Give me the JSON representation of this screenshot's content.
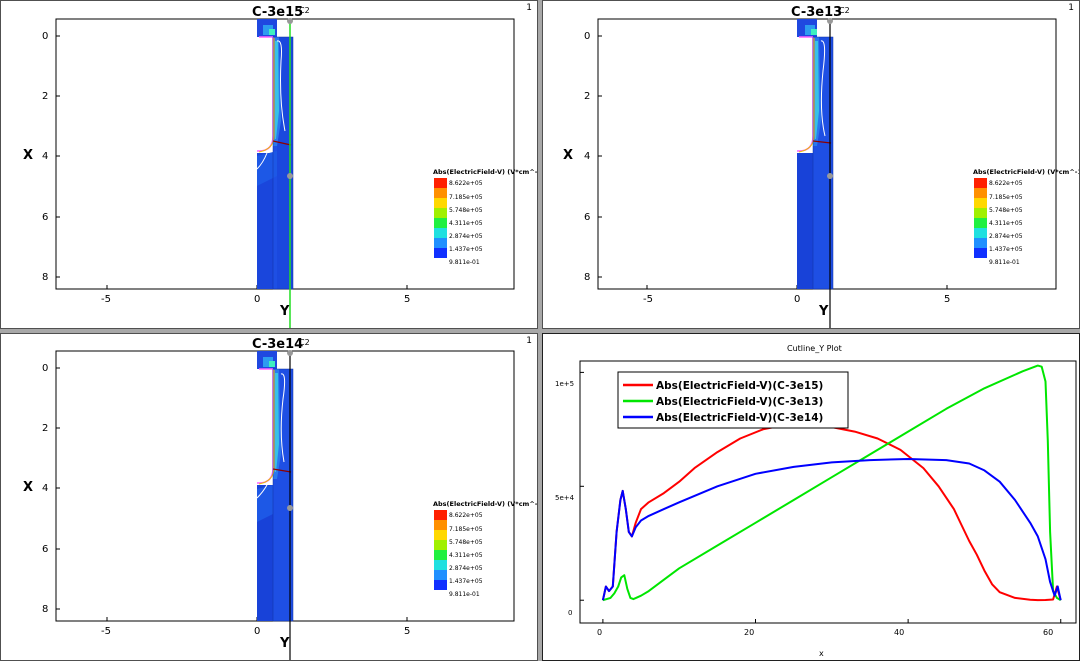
{
  "viewports": [
    {
      "id": "vp1",
      "number": "1",
      "title": "C-3e15",
      "cut_label": "C2",
      "cut_color": "#22dd22",
      "x_axis_label": "X",
      "y_axis_label": "Y",
      "x_ticks": [
        "0",
        "2",
        "4",
        "6",
        "8"
      ],
      "y_ticks": [
        "-5",
        "0",
        "5"
      ],
      "colorbar": {
        "title": "Abs(ElectricField-V) (V*cm^-1)",
        "labels": [
          "8.622e+05",
          "7.185e+05",
          "5.748e+05",
          "4.311e+05",
          "2.874e+05",
          "1.437e+05",
          "9.811e-01"
        ]
      }
    },
    {
      "id": "vp2",
      "number": "1",
      "title": "C-3e13",
      "cut_label": "C2",
      "cut_color": "#000000",
      "x_axis_label": "X",
      "y_axis_label": "Y",
      "x_ticks": [
        "0",
        "2",
        "4",
        "6",
        "8"
      ],
      "y_ticks": [
        "-5",
        "0",
        "5"
      ],
      "colorbar": {
        "title": "Abs(ElectricField-V) (V*cm^-1)",
        "labels": [
          "8.622e+05",
          "7.185e+05",
          "5.748e+05",
          "4.311e+05",
          "2.874e+05",
          "1.437e+05",
          "9.811e-01"
        ]
      }
    },
    {
      "id": "vp3",
      "number": "1",
      "title": "C-3e14",
      "cut_label": "C2",
      "cut_color": "#000000",
      "x_axis_label": "X",
      "y_axis_label": "Y",
      "x_ticks": [
        "0",
        "2",
        "4",
        "6",
        "8"
      ],
      "y_ticks": [
        "-5",
        "0",
        "5"
      ],
      "colorbar": {
        "title": "Abs(ElectricField-V) (V*cm^-1)",
        "labels": [
          "8.622e+05",
          "7.185e+05",
          "5.748e+05",
          "4.311e+05",
          "2.874e+05",
          "1.437e+05",
          "9.811e-01"
        ]
      }
    }
  ],
  "plot_panel": {
    "number": "1"
  },
  "chart_data": {
    "type": "line",
    "title": "Cutline_Y Plot",
    "xlabel": "x",
    "ylabel": "",
    "xlim": [
      -3,
      62
    ],
    "ylim": [
      -10000,
      105000
    ],
    "x_ticks": [
      "0",
      "20",
      "40",
      "60"
    ],
    "y_ticks": [
      "0",
      "5e+4",
      "1e+5"
    ],
    "legend_position": "top-left",
    "series": [
      {
        "name": "Abs(ElectricField-V)(C-3e15)",
        "color": "#ff0000",
        "x": [
          0,
          0.4,
          0.8,
          1.3,
          1.8,
          2.3,
          2.6,
          3.0,
          3.4,
          3.8,
          4.3,
          5.0,
          6.0,
          8.0,
          10,
          12,
          15,
          18,
          21,
          24,
          27,
          30,
          33,
          36,
          39,
          42,
          44,
          46,
          47,
          48,
          49,
          50,
          51,
          52,
          54,
          56,
          57,
          58,
          59,
          59.5,
          60
        ],
        "y": [
          0,
          6000,
          4000,
          6000,
          30000,
          44000,
          48000,
          40000,
          30000,
          28000,
          34000,
          40000,
          43000,
          47000,
          52000,
          58000,
          65000,
          71000,
          75000,
          77000,
          77200,
          76000,
          74000,
          71000,
          66000,
          58000,
          50000,
          40000,
          33000,
          26000,
          20000,
          13000,
          7000,
          3500,
          1000,
          200,
          50,
          100,
          300,
          6000,
          0
        ]
      },
      {
        "name": "Abs(ElectricField-V)(C-3e13)",
        "color": "#00e600",
        "x": [
          0,
          1.0,
          1.5,
          2.0,
          2.4,
          2.8,
          3.2,
          3.6,
          4.0,
          5.0,
          6.0,
          8.0,
          10,
          15,
          20,
          25,
          30,
          35,
          40,
          45,
          50,
          55,
          57,
          57.5,
          58,
          58.3,
          58.6,
          59.0,
          59.5,
          60
        ],
        "y": [
          0,
          1000,
          3000,
          6000,
          10000,
          11000,
          5000,
          1000,
          500,
          2000,
          4000,
          9000,
          14000,
          24000,
          34000,
          44000,
          54000,
          64000,
          74000,
          84000,
          93000,
          100500,
          103000,
          102500,
          96000,
          70000,
          30000,
          4000,
          1000,
          0
        ]
      },
      {
        "name": "Abs(ElectricField-V)(C-3e14)",
        "color": "#0000ff",
        "x": [
          0,
          0.4,
          0.8,
          1.3,
          1.8,
          2.3,
          2.6,
          3.0,
          3.4,
          3.8,
          4.3,
          5.0,
          6.0,
          8.0,
          10,
          15,
          20,
          25,
          30,
          35,
          40,
          45,
          48,
          50,
          52,
          54,
          55,
          56,
          57,
          58,
          58.6,
          59.2,
          59.6,
          60
        ],
        "y": [
          0,
          6000,
          4000,
          6000,
          30000,
          44000,
          48000,
          40000,
          30000,
          28000,
          32000,
          35000,
          37000,
          40000,
          43000,
          50000,
          55500,
          58500,
          60500,
          61500,
          62000,
          61500,
          60000,
          57000,
          52000,
          44000,
          39000,
          34000,
          28000,
          18000,
          8000,
          2000,
          6000,
          0
        ]
      }
    ]
  }
}
